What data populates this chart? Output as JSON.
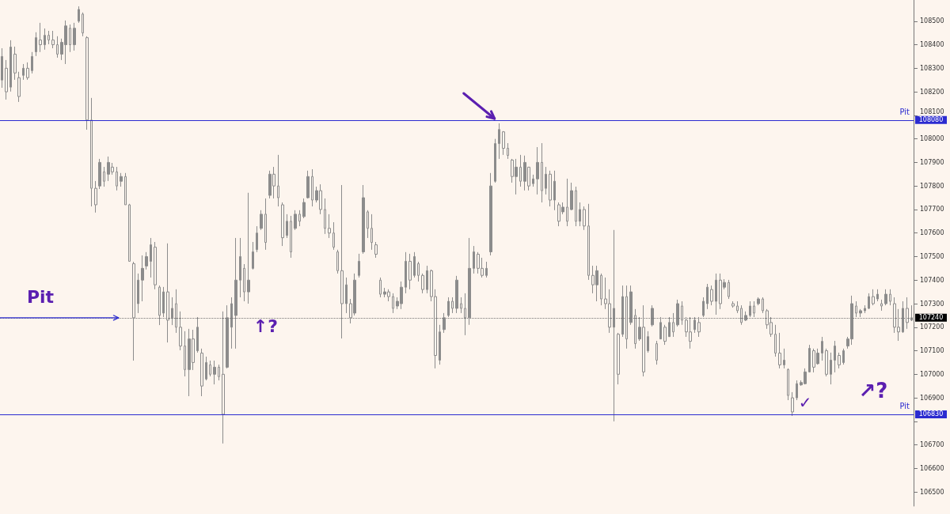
{
  "chart_data": {
    "type": "candlestick",
    "color": "#8c8c8c",
    "tick_labels": "y",
    "grid": false,
    "ylim": [
      106440,
      108590
    ],
    "yticks": [
      106500,
      106600,
      106700,
      {
        "value": 106800,
        "label": null
      },
      106900,
      107000,
      107100,
      107200,
      107300,
      107400,
      107500,
      107600,
      107700,
      107800,
      107900,
      108000,
      108100,
      108200,
      108300,
      108400,
      108500
    ],
    "ref_lines": [
      {
        "axis": "y",
        "value": 108080,
        "label": "Pit",
        "color": "#2b2bd0"
      },
      {
        "axis": "y",
        "value": 106830,
        "label": "Pit",
        "color": "#2b2bd0"
      },
      {
        "axis": "y",
        "value": 107240,
        "color": "#777777",
        "line_style": "dotted"
      }
    ],
    "annotations": [
      "Pit",
      "↑?",
      "↗?",
      "✓",
      "108080",
      "106830",
      "107240"
    ],
    "categories": [
      null,
      null,
      null,
      null,
      null,
      null,
      null,
      null,
      null,
      null,
      null,
      null,
      null,
      null,
      null,
      null,
      null,
      null,
      null,
      null,
      null,
      null,
      null,
      null,
      null,
      null,
      null,
      null,
      null,
      null,
      null,
      null,
      null,
      null,
      null,
      null,
      null,
      null,
      null,
      null,
      null,
      null,
      null,
      null,
      null,
      null,
      null,
      null,
      null,
      null,
      null,
      null,
      null,
      null,
      null,
      null,
      null,
      null,
      null,
      null,
      null,
      null,
      null,
      null,
      null,
      null,
      null,
      null,
      null,
      null,
      null,
      null,
      null,
      null,
      null,
      null,
      null,
      null,
      null,
      null,
      null,
      null,
      null,
      null,
      null,
      null,
      null,
      null,
      null,
      null,
      null,
      null,
      null,
      null,
      null,
      null,
      null,
      null,
      null,
      null,
      null,
      null,
      null,
      null,
      null,
      null,
      null,
      null,
      null,
      null,
      null,
      null,
      null,
      null,
      null,
      null,
      null,
      null,
      null,
      null,
      null,
      null,
      null,
      null,
      null,
      null,
      null,
      null,
      null,
      null,
      null,
      null,
      null,
      null,
      null,
      null,
      null,
      null,
      null,
      null,
      null,
      null,
      null,
      null,
      null,
      null,
      null,
      null,
      null,
      null,
      null,
      null,
      null,
      null,
      null,
      null,
      null,
      null,
      null,
      null,
      null,
      null,
      null,
      null,
      null,
      null,
      null,
      null,
      null,
      null,
      null,
      null,
      null,
      null,
      null,
      null,
      null,
      null,
      null,
      null,
      null,
      null,
      null,
      null,
      null,
      null,
      null,
      null,
      null,
      null,
      null,
      null,
      null,
      null,
      null,
      null,
      null,
      null,
      null,
      null,
      null,
      null,
      null,
      null,
      null,
      null,
      null,
      null,
      null,
      null,
      null,
      null,
      null,
      null,
      null
    ],
    "ohlc": [
      [
        108250,
        108385,
        108217,
        108350
      ],
      [
        108300,
        108335,
        108167,
        108200
      ],
      [
        108220,
        108419,
        108201,
        108390
      ],
      [
        108360,
        108392,
        108251,
        108280
      ],
      [
        108260,
        108285,
        108157,
        108180
      ],
      [
        108270,
        108318,
        108251,
        108300
      ],
      [
        108300,
        108325,
        108251,
        108260
      ],
      [
        108290,
        108369,
        108278,
        108350
      ],
      [
        108370,
        108453,
        108352,
        108430
      ],
      [
        108420,
        108493,
        108369,
        108400
      ],
      [
        108400,
        108469,
        108379,
        108440
      ],
      [
        108440,
        108459,
        108402,
        108420
      ],
      [
        108420,
        108459,
        108385,
        108400
      ],
      [
        108400,
        108436,
        108345,
        108360
      ],
      [
        108360,
        108426,
        108335,
        108410
      ],
      [
        108400,
        108503,
        108318,
        108480
      ],
      [
        108470,
        108486,
        108369,
        108400
      ],
      [
        108400,
        108493,
        108375,
        108470
      ],
      [
        108500,
        108563,
        108493,
        108550
      ],
      [
        108530,
        108537,
        108436,
        108450
      ],
      [
        108430,
        108436,
        108039,
        108080
      ],
      [
        108080,
        108174,
        107713,
        107790
      ],
      [
        107790,
        107821,
        107687,
        107720
      ],
      [
        107800,
        107915,
        107787,
        107900
      ],
      [
        107860,
        107881,
        107797,
        107820
      ],
      [
        107850,
        107925,
        107821,
        107900
      ],
      [
        107880,
        107898,
        107848,
        107860
      ],
      [
        107860,
        107881,
        107781,
        107800
      ],
      [
        107820,
        107855,
        107797,
        107840
      ],
      [
        107840,
        107855,
        107720,
        107720
      ],
      [
        107720,
        107724,
        107478,
        107480
      ],
      [
        107470,
        107478,
        107058,
        107240
      ],
      [
        107300,
        107428,
        107260,
        107400
      ],
      [
        107400,
        107505,
        107310,
        107450
      ],
      [
        107460,
        107519,
        107445,
        107500
      ],
      [
        107480,
        107579,
        107411,
        107550
      ],
      [
        107540,
        107562,
        107361,
        107380
      ],
      [
        107370,
        107377,
        107209,
        107250
      ],
      [
        107260,
        107371,
        107243,
        107350
      ],
      [
        107350,
        107556,
        107135,
        107230
      ],
      [
        107240,
        107327,
        107209,
        107280
      ],
      [
        107300,
        107361,
        107176,
        107200
      ],
      [
        107200,
        107267,
        107102,
        107120
      ],
      [
        107120,
        107183,
        106991,
        107020
      ],
      [
        107020,
        107193,
        106907,
        107150
      ],
      [
        107150,
        107189,
        107018,
        107050
      ],
      [
        107100,
        107243,
        107092,
        107200
      ],
      [
        107090,
        107109,
        106907,
        106950
      ],
      [
        106980,
        107075,
        106974,
        107050
      ],
      [
        107040,
        107058,
        106991,
        107000
      ],
      [
        107000,
        107058,
        106957,
        107030
      ],
      [
        107030,
        107041,
        106974,
        106990
      ],
      [
        107000,
        107267,
        106706,
        106830
      ],
      [
        107030,
        107293,
        107025,
        107240
      ],
      [
        107200,
        107327,
        107109,
        107300
      ],
      [
        107250,
        107579,
        107109,
        107400
      ],
      [
        107400,
        107579,
        107327,
        107500
      ],
      [
        107450,
        107468,
        107310,
        107350
      ],
      [
        107350,
        107771,
        107300,
        107400
      ],
      [
        107450,
        107562,
        107445,
        107520
      ],
      [
        107530,
        107629,
        107519,
        107600
      ],
      [
        107620,
        107697,
        107613,
        107680
      ],
      [
        107680,
        107747,
        107529,
        107560
      ],
      [
        107760,
        107865,
        107747,
        107850
      ],
      [
        107850,
        107881,
        107747,
        107800
      ],
      [
        107800,
        107932,
        107713,
        107750
      ],
      [
        107720,
        107730,
        107545,
        107580
      ],
      [
        107590,
        107680,
        107579,
        107650
      ],
      [
        107650,
        107673,
        107495,
        107520
      ],
      [
        107620,
        107697,
        107613,
        107680
      ],
      [
        107680,
        107697,
        107629,
        107650
      ],
      [
        107670,
        107747,
        107663,
        107730
      ],
      [
        107750,
        107865,
        107747,
        107840
      ],
      [
        107840,
        107871,
        107713,
        107740
      ],
      [
        107740,
        107797,
        107730,
        107780
      ],
      [
        107780,
        107807,
        107680,
        107700
      ],
      [
        107700,
        107747,
        107596,
        107620
      ],
      [
        107620,
        107680,
        107579,
        107600
      ],
      [
        107600,
        107646,
        107529,
        107540
      ],
      [
        107520,
        107529,
        107428,
        107440
      ],
      [
        107440,
        107804,
        107152,
        107300
      ],
      [
        107300,
        107411,
        107260,
        107380
      ],
      [
        107300,
        107320,
        107216,
        107240
      ],
      [
        107260,
        107428,
        107250,
        107400
      ],
      [
        107420,
        107512,
        107411,
        107480
      ],
      [
        107520,
        107804,
        107512,
        107750
      ],
      [
        107690,
        107697,
        107579,
        107620
      ],
      [
        107620,
        107680,
        107529,
        107560
      ],
      [
        107550,
        107562,
        107495,
        107510
      ],
      [
        107400,
        107411,
        107327,
        107340
      ],
      [
        107340,
        107367,
        107327,
        107350
      ],
      [
        107350,
        107361,
        107310,
        107330
      ],
      [
        107330,
        107344,
        107260,
        107280
      ],
      [
        107290,
        107327,
        107277,
        107310
      ],
      [
        107300,
        107394,
        107277,
        107370
      ],
      [
        107370,
        107519,
        107344,
        107480
      ],
      [
        107480,
        107512,
        107361,
        107400
      ],
      [
        107420,
        107519,
        107411,
        107500
      ],
      [
        107470,
        107478,
        107394,
        107420
      ],
      [
        107420,
        107428,
        107344,
        107360
      ],
      [
        107360,
        107461,
        107344,
        107440
      ],
      [
        107440,
        107445,
        107310,
        107330
      ],
      [
        107330,
        107361,
        107025,
        107080
      ],
      [
        107060,
        107210,
        107041,
        107180
      ],
      [
        107190,
        107260,
        107176,
        107240
      ],
      [
        107250,
        107327,
        107243,
        107310
      ],
      [
        107310,
        107327,
        107260,
        107280
      ],
      [
        107280,
        107418,
        107260,
        107400
      ],
      [
        107300,
        107327,
        107260,
        107280
      ],
      [
        107280,
        107344,
        107166,
        107240
      ],
      [
        107240,
        107579,
        107210,
        107450
      ],
      [
        107450,
        107545,
        107428,
        107520
      ],
      [
        107510,
        107519,
        107428,
        107450
      ],
      [
        107450,
        107495,
        107411,
        107420
      ],
      [
        107420,
        107478,
        107411,
        107450
      ],
      [
        107520,
        107855,
        107505,
        107800
      ],
      [
        107820,
        108000,
        107814,
        107980
      ],
      [
        107980,
        108066,
        107915,
        108040
      ],
      [
        108030,
        108033,
        107932,
        107960
      ],
      [
        107960,
        107982,
        107915,
        107930
      ],
      [
        107910,
        107915,
        107814,
        107840
      ],
      [
        107840,
        107915,
        107764,
        107880
      ],
      [
        107880,
        107932,
        107797,
        107820
      ],
      [
        107820,
        107929,
        107781,
        107900
      ],
      [
        107880,
        107881,
        107781,
        107800
      ],
      [
        107810,
        107848,
        107797,
        107830
      ],
      [
        107830,
        107965,
        107764,
        107900
      ],
      [
        107900,
        107982,
        107730,
        107780
      ],
      [
        107790,
        107881,
        107764,
        107850
      ],
      [
        107850,
        107865,
        107713,
        107740
      ],
      [
        107740,
        107865,
        107697,
        107820
      ],
      [
        107720,
        107730,
        107629,
        107650
      ],
      [
        107690,
        107730,
        107680,
        107710
      ],
      [
        107710,
        107831,
        107629,
        107650
      ],
      [
        107700,
        107814,
        107697,
        107780
      ],
      [
        107780,
        107797,
        107629,
        107650
      ],
      [
        107650,
        107730,
        107629,
        107700
      ],
      [
        107700,
        107713,
        107613,
        107630
      ],
      [
        107630,
        107724,
        107401,
        107420
      ],
      [
        107420,
        107461,
        107344,
        107380
      ],
      [
        107380,
        107461,
        107310,
        107440
      ],
      [
        107420,
        107428,
        107293,
        107320
      ],
      [
        107320,
        107411,
        107277,
        107300
      ],
      [
        107300,
        107361,
        107176,
        107200
      ],
      [
        107200,
        107613,
        106800,
        107280
      ],
      [
        107170,
        107176,
        106957,
        107000
      ],
      [
        107170,
        107377,
        107159,
        107330
      ],
      [
        107330,
        107377,
        107109,
        107150
      ],
      [
        107220,
        107377,
        107210,
        107350
      ],
      [
        107250,
        107277,
        107109,
        107130
      ],
      [
        107150,
        107243,
        107142,
        107200
      ],
      [
        107200,
        107293,
        106991,
        107010
      ],
      [
        107100,
        107183,
        107092,
        107160
      ],
      [
        107210,
        107293,
        107203,
        107280
      ],
      [
        107130,
        107142,
        107041,
        107060
      ],
      [
        107150,
        107243,
        107149,
        107220
      ],
      [
        107200,
        107210,
        107125,
        107140
      ],
      [
        107160,
        107243,
        107159,
        107220
      ],
      [
        107220,
        107260,
        107159,
        107180
      ],
      [
        107210,
        107317,
        107203,
        107300
      ],
      [
        107290,
        107310,
        107210,
        107230
      ],
      [
        107230,
        107243,
        107159,
        107180
      ],
      [
        107180,
        107243,
        107109,
        107140
      ],
      [
        107190,
        107243,
        107176,
        107230
      ],
      [
        107220,
        107243,
        107159,
        107180
      ],
      [
        107250,
        107327,
        107243,
        107310
      ],
      [
        107300,
        107384,
        107277,
        107370
      ],
      [
        107360,
        107377,
        107293,
        107310
      ],
      [
        107310,
        107428,
        107253,
        107400
      ],
      [
        107400,
        107428,
        107277,
        107300
      ],
      [
        107370,
        107404,
        107361,
        107390
      ],
      [
        107390,
        107401,
        107320,
        107330
      ],
      [
        107300,
        107310,
        107283,
        107290
      ],
      [
        107290,
        107310,
        107260,
        107270
      ],
      [
        107280,
        107293,
        107210,
        107220
      ],
      [
        107230,
        107267,
        107226,
        107250
      ],
      [
        107250,
        107310,
        107243,
        107290
      ],
      [
        107290,
        107310,
        107243,
        107260
      ],
      [
        107300,
        107327,
        107293,
        107320
      ],
      [
        107320,
        107327,
        107260,
        107270
      ],
      [
        107270,
        107277,
        107193,
        107210
      ],
      [
        107220,
        107243,
        107159,
        107170
      ],
      [
        107170,
        107210,
        107075,
        107090
      ],
      [
        107090,
        107176,
        107025,
        107040
      ],
      [
        107040,
        107109,
        107025,
        107060
      ],
      [
        107020,
        107025,
        106890,
        106910
      ],
      [
        106900,
        106924,
        106823,
        106840
      ],
      [
        106900,
        106974,
        106890,
        106960
      ],
      [
        106955,
        106974,
        106951,
        106965
      ],
      [
        106960,
        107025,
        106957,
        107010
      ],
      [
        107010,
        107125,
        107008,
        107110
      ],
      [
        107100,
        107109,
        107008,
        107030
      ],
      [
        107045,
        107109,
        107041,
        107090
      ],
      [
        107090,
        107159,
        107058,
        107140
      ],
      [
        107100,
        107109,
        106991,
        107000
      ],
      [
        107000,
        107092,
        106957,
        107060
      ],
      [
        107060,
        107142,
        107008,
        107120
      ],
      [
        107080,
        107092,
        107025,
        107040
      ],
      [
        107050,
        107109,
        107041,
        107100
      ],
      [
        107120,
        107159,
        107109,
        107150
      ],
      [
        107150,
        107334,
        107125,
        107300
      ],
      [
        107290,
        107310,
        107243,
        107260
      ],
      [
        107260,
        107277,
        107243,
        107270
      ],
      [
        107270,
        107293,
        107260,
        107280
      ],
      [
        107280,
        107344,
        107277,
        107330
      ],
      [
        107330,
        107361,
        107293,
        107300
      ],
      [
        107320,
        107361,
        107310,
        107340
      ],
      [
        107300,
        107317,
        107270,
        107290
      ],
      [
        107300,
        107361,
        107293,
        107340
      ],
      [
        107340,
        107361,
        107293,
        107310
      ],
      [
        107300,
        107327,
        107176,
        107200
      ],
      [
        107200,
        107277,
        107142,
        107180
      ],
      [
        107180,
        107310,
        107176,
        107280
      ],
      [
        107280,
        107327,
        107193,
        107220
      ],
      [
        107230,
        107293,
        107226,
        107240
      ]
    ]
  }
}
